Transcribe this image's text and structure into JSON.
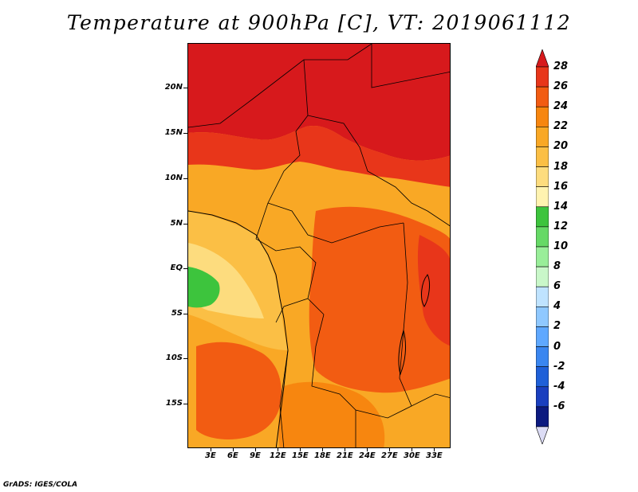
{
  "title": "Temperature at 900hPa [C], VT: 2019061112",
  "credit": "GrADS: IGES/COLA",
  "map": {
    "variable": "Temperature at 900hPa",
    "units": "C",
    "valid_time": "2019061112",
    "lat_labels": [
      "20N",
      "15N",
      "10N",
      "5N",
      "EQ",
      "5S",
      "10S",
      "15S"
    ],
    "lon_labels": [
      "3E",
      "6E",
      "9E",
      "12E",
      "15E",
      "18E",
      "21E",
      "24E",
      "27E",
      "30E",
      "33E"
    ]
  },
  "colorbar": {
    "levels": [
      "28",
      "26",
      "24",
      "22",
      "20",
      "18",
      "16",
      "14",
      "12",
      "10",
      "8",
      "6",
      "4",
      "2",
      "0",
      "-2",
      "-4",
      "-6"
    ],
    "colors": [
      "#d7191c",
      "#e8361a",
      "#f25c12",
      "#f7860f",
      "#f9a825",
      "#fbbf45",
      "#fddc7e",
      "#fff3b0",
      "#3dc43d",
      "#66d966",
      "#99ee99",
      "#c9f7c9",
      "#bfe3ff",
      "#8fc8ff",
      "#5fa8ff",
      "#3a86f0",
      "#1f60d8",
      "#1a3fbf",
      "#0c1a80",
      "#dcdcf5"
    ]
  }
}
